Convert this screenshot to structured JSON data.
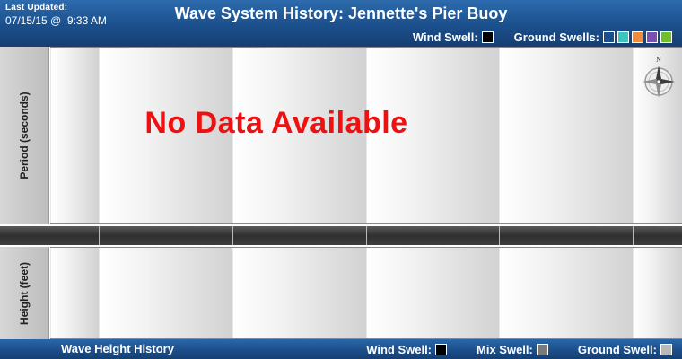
{
  "header": {
    "last_updated_label": "Last Updated:",
    "last_updated_value": "07/15/15 @  9:33 AM",
    "title": "Wave System History: Jennette's Pier Buoy",
    "wind_swell_label": "Wind Swell:",
    "ground_swells_label": "Ground Swells:",
    "wind_swell_color": "#000000",
    "ground_swell_colors": [
      "#1b4f8c",
      "#3cc6c0",
      "#f08a3c",
      "#7a4fb0",
      "#6fbf2a"
    ]
  },
  "axes": {
    "period_label": "Period (seconds)",
    "height_label": "Height (feet)"
  },
  "main": {
    "no_data_message": "No Data Available",
    "compass_north": "N"
  },
  "footer": {
    "title": "Wave Height History",
    "wind_swell_label": "Wind Swell:",
    "mix_swell_label": "Mix Swell:",
    "ground_swell_label": "Ground Swell:",
    "wind_swell_color": "#000000",
    "mix_swell_color": "#7a7a7a",
    "ground_swell_color": "#b9b9b9"
  }
}
